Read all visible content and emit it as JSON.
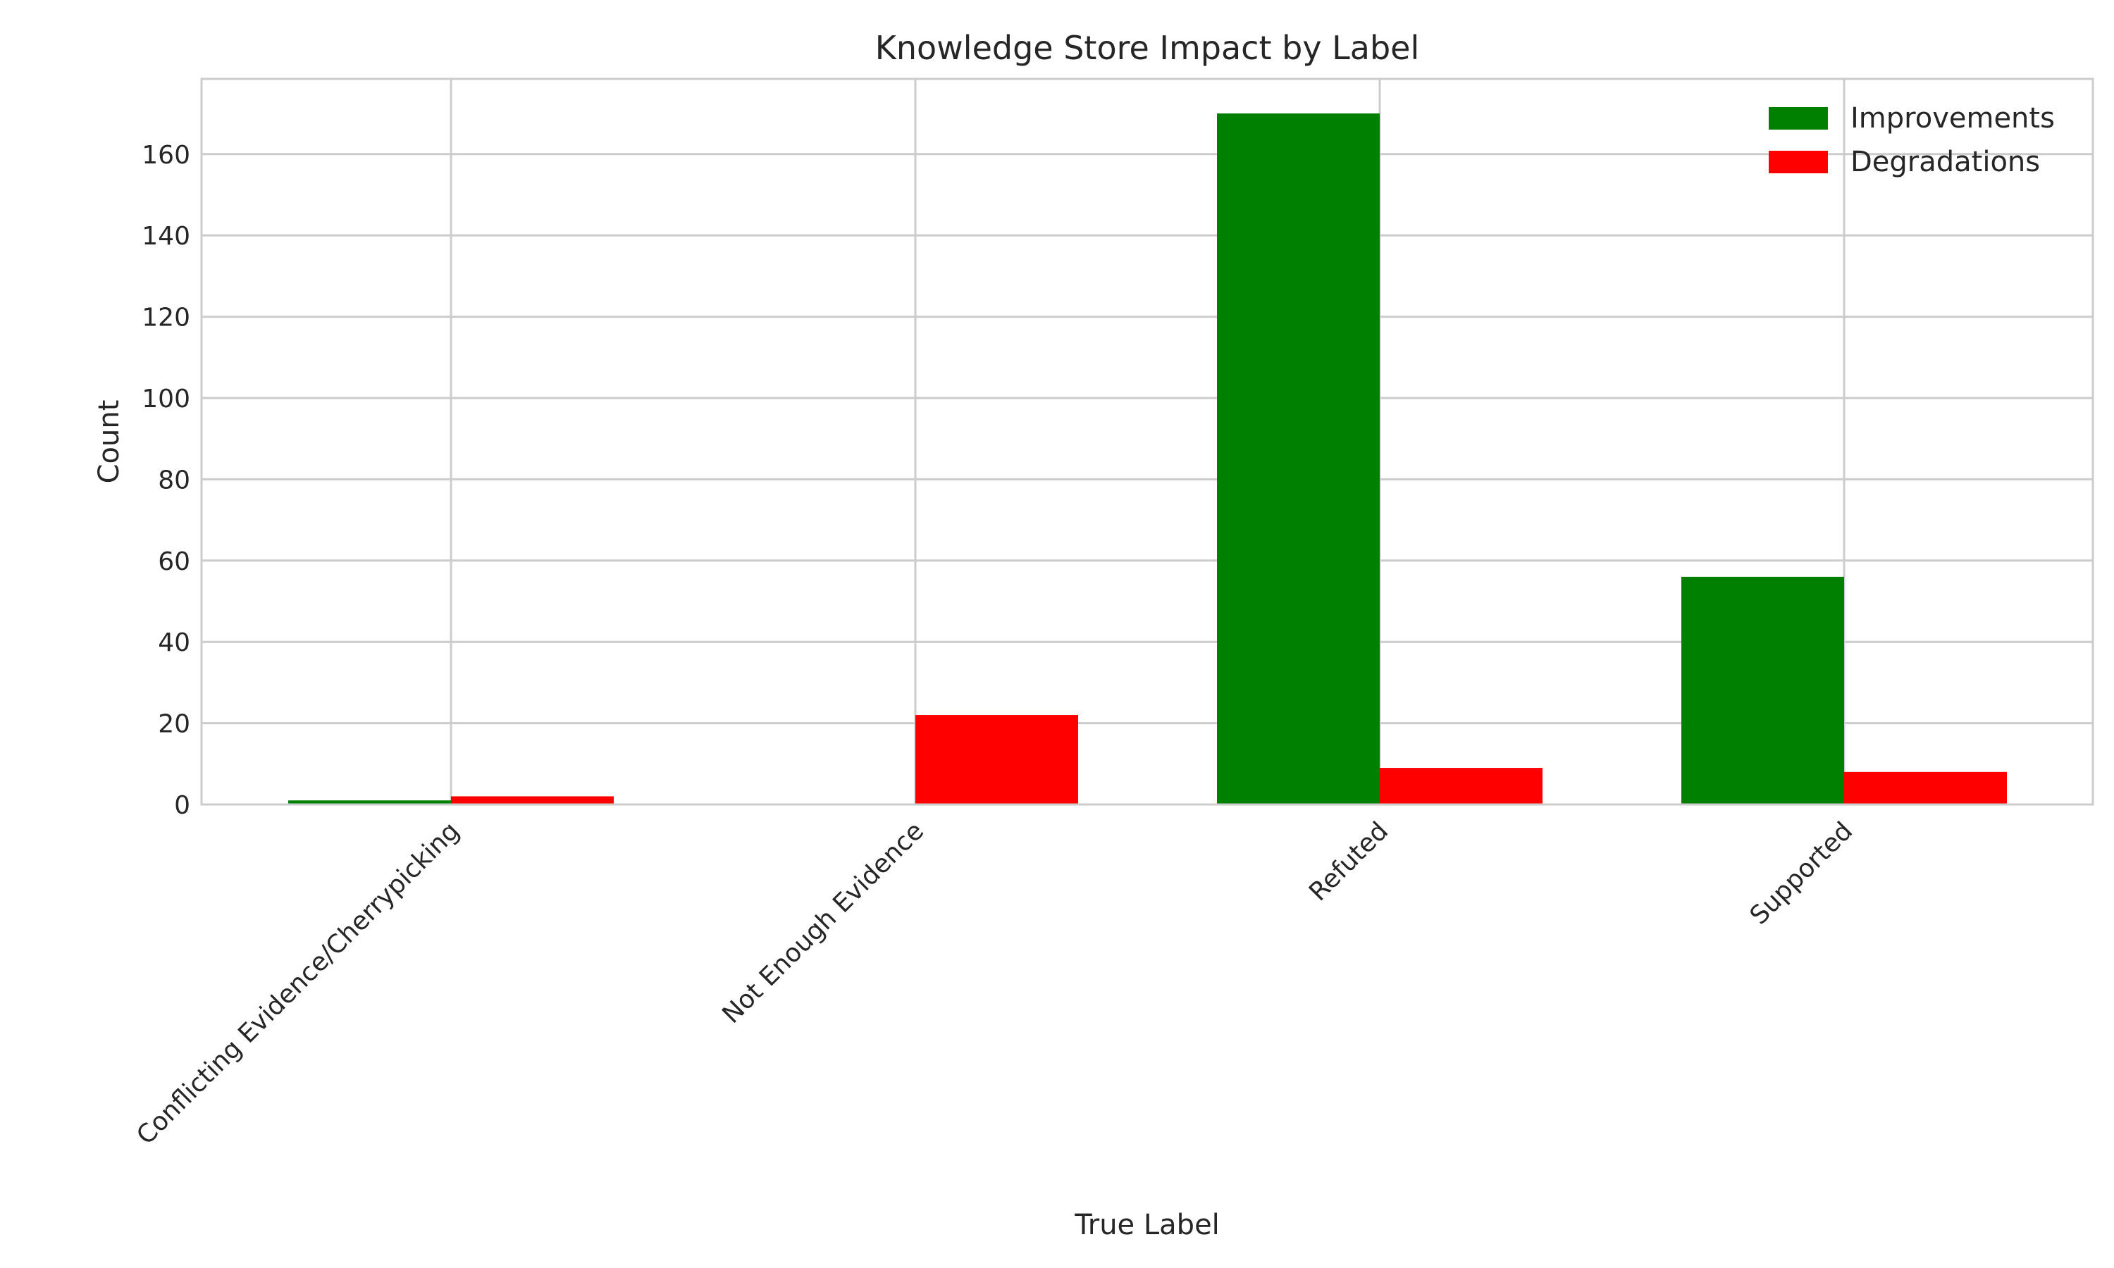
{
  "chart_data": {
    "type": "bar",
    "title": "Knowledge Store Impact by Label",
    "xlabel": "True Label",
    "ylabel": "Count",
    "categories": [
      "Conflicting Evidence/Cherrypicking",
      "Not Enough Evidence",
      "Refuted",
      "Supported"
    ],
    "series": [
      {
        "name": "Improvements",
        "color": "#008000",
        "values": [
          1,
          0,
          170,
          56
        ]
      },
      {
        "name": "Degradations",
        "color": "#ff0000",
        "values": [
          2,
          22,
          9,
          8
        ]
      }
    ],
    "ylim": [
      0,
      178.5
    ],
    "yticks": [
      0,
      20,
      40,
      60,
      80,
      100,
      120,
      140,
      160
    ],
    "grid": true,
    "legend_position": "top-right"
  }
}
